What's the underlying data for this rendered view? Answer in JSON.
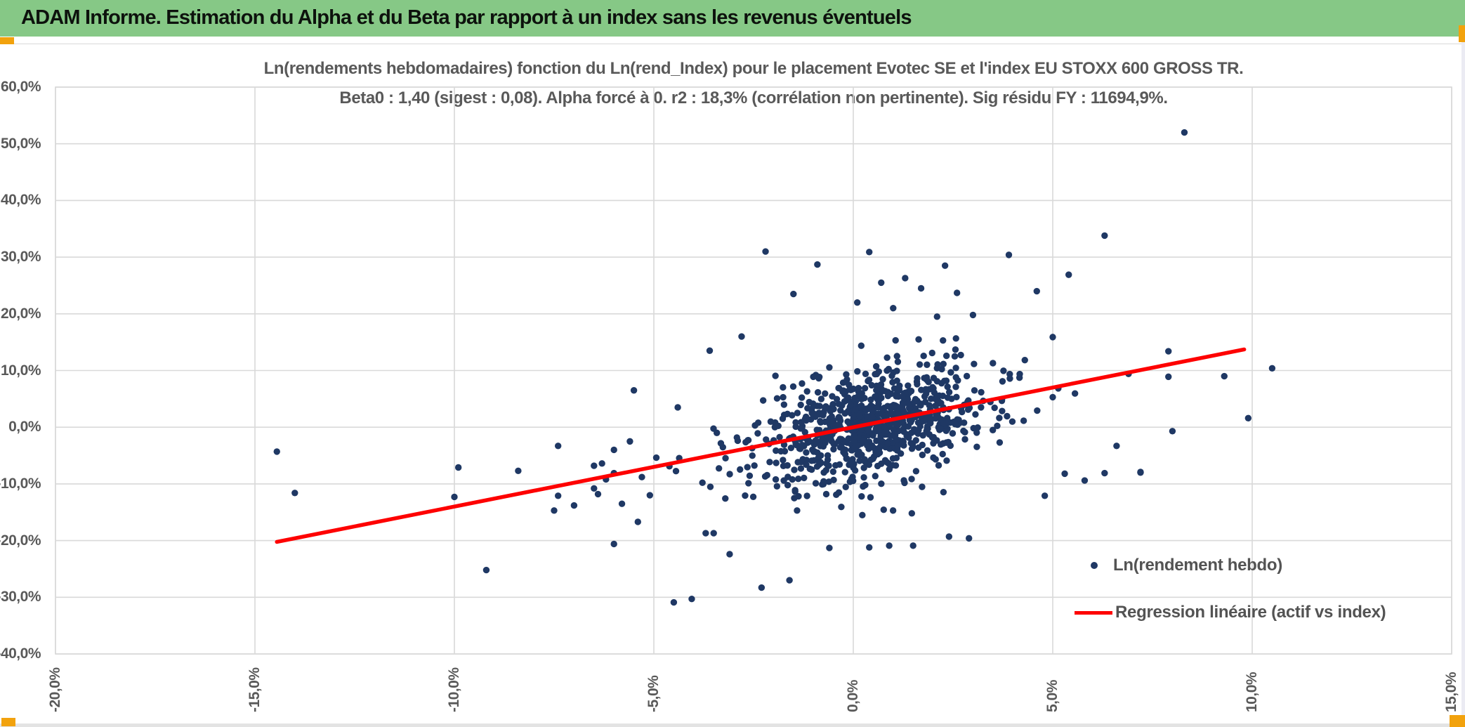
{
  "header": {
    "title": "ADAM Informe. Estimation du Alpha et du Beta par rapport à un index sans les revenus éventuels",
    "bg_color": "#86C886"
  },
  "accents": {
    "selection_orange": "#F2A20D",
    "gridline_gray": "#D9D9D9",
    "axis_text_gray": "#595959"
  },
  "chart_data": {
    "type": "scatter",
    "title_line1": "Ln(rendements hebdomadaires) fonction du Ln(rend_Index) pour le placement Evotec SE et l'index EU STOXX 600 GROSS TR.",
    "title_line2": "Beta0 : 1,40 (sigest : 0,08). Alpha forcé à 0. r2 : 18,3% (corrélation non pertinente). Sig résidu FY : 11694,9%.",
    "stats": {
      "beta0": "1,40",
      "sigest": "0,08",
      "alpha": "forcé à 0",
      "r2": "18,3%",
      "sig_residu_FY": "11694,9%"
    },
    "xlim": [
      -20,
      15
    ],
    "ylim": [
      -40,
      60
    ],
    "grid": true,
    "x_axis": {
      "ticks": [
        {
          "v": -20,
          "label": "-20,0%"
        },
        {
          "v": -15,
          "label": "-15,0%"
        },
        {
          "v": -10,
          "label": "-10,0%"
        },
        {
          "v": -5,
          "label": "-5,0%"
        },
        {
          "v": 0,
          "label": "0,0%"
        },
        {
          "v": 5,
          "label": "5,0%"
        },
        {
          "v": 10,
          "label": "10,0%"
        },
        {
          "v": 15,
          "label": "15,0%"
        }
      ]
    },
    "y_axis": {
      "ticks": [
        {
          "v": 60,
          "label": "60,0%"
        },
        {
          "v": 50,
          "label": "50,0%"
        },
        {
          "v": 40,
          "label": "40,0%"
        },
        {
          "v": 30,
          "label": "30,0%"
        },
        {
          "v": 20,
          "label": "20,0%"
        },
        {
          "v": 10,
          "label": "10,0%"
        },
        {
          "v": 0,
          "label": "0,0%"
        },
        {
          "v": -10,
          "label": "-10,0%"
        },
        {
          "v": -20,
          "label": "-20,0%"
        },
        {
          "v": -30,
          "label": "-30,0%"
        },
        {
          "v": -40,
          "label": "-40,0%"
        }
      ]
    },
    "legend": {
      "position": "inside-right",
      "items": [
        {
          "label": "Ln(rendement hebdo)",
          "marker": "point",
          "color": "#1F3864"
        },
        {
          "label": "Regression linéaire (actif vs index)",
          "marker": "line",
          "color": "#FE0000"
        }
      ]
    },
    "series_color": "#1F3864",
    "regression": {
      "slope": 1.4,
      "intercept": 0,
      "x_start": -14.45,
      "x_end": 9.8,
      "color": "#FE0000"
    },
    "explicit_points": [
      [
        -14.45,
        -4.3
      ],
      [
        -14.0,
        -11.6
      ],
      [
        -9.9,
        -7.1
      ],
      [
        -10.0,
        -12.3
      ],
      [
        -9.2,
        -25.2
      ],
      [
        -8.4,
        -7.7
      ],
      [
        -7.4,
        -3.3
      ],
      [
        -7.4,
        -12.1
      ],
      [
        -7.5,
        -14.7
      ],
      [
        -7.0,
        -13.8
      ],
      [
        -6.5,
        -6.8
      ],
      [
        -6.3,
        -6.4
      ],
      [
        -6.5,
        -10.8
      ],
      [
        -6.4,
        -11.8
      ],
      [
        -6.2,
        -9.2
      ],
      [
        -6.0,
        -4.0
      ],
      [
        -6.0,
        -8.1
      ],
      [
        -6.0,
        -20.6
      ],
      [
        -5.4,
        -16.7
      ],
      [
        -5.5,
        6.5
      ],
      [
        -5.6,
        -2.5
      ],
      [
        -5.8,
        -13.5
      ],
      [
        -5.3,
        -8.8
      ],
      [
        -5.1,
        -12.0
      ],
      [
        -4.5,
        -30.9
      ],
      [
        -4.05,
        -30.3
      ],
      [
        -2.3,
        -28.3
      ],
      [
        -1.6,
        -27.0
      ],
      [
        -3.1,
        -22.4
      ],
      [
        -3.7,
        -18.7
      ],
      [
        -3.5,
        -18.7
      ],
      [
        0.4,
        -21.2
      ],
      [
        0.9,
        -20.9
      ],
      [
        1.5,
        -20.9
      ],
      [
        -0.6,
        -21.3
      ],
      [
        2.4,
        -19.3
      ],
      [
        2.9,
        -19.6
      ],
      [
        4.8,
        -12.1
      ],
      [
        5.3,
        -8.2
      ],
      [
        5.8,
        -9.4
      ],
      [
        6.3,
        -8.1
      ],
      [
        7.2,
        -8.0
      ],
      [
        8.3,
        52.0
      ],
      [
        6.3,
        33.8
      ],
      [
        5.4,
        26.9
      ],
      [
        4.6,
        24.0
      ],
      [
        3.9,
        30.4
      ],
      [
        3.0,
        19.8
      ],
      [
        3.5,
        11.3
      ],
      [
        5.0,
        15.9
      ],
      [
        5.0,
        5.3
      ],
      [
        2.3,
        28.5
      ],
      [
        0.4,
        30.9
      ],
      [
        -0.9,
        28.7
      ],
      [
        -2.2,
        31.0
      ],
      [
        1.3,
        26.3
      ],
      [
        0.7,
        25.5
      ],
      [
        1.7,
        24.5
      ],
      [
        2.6,
        23.7
      ],
      [
        -1.5,
        23.5
      ],
      [
        0.1,
        22.0
      ],
      [
        1.0,
        21.0
      ],
      [
        2.1,
        19.5
      ],
      [
        -2.8,
        16.0
      ],
      [
        -3.6,
        13.5
      ],
      [
        -4.4,
        3.5
      ],
      [
        10.5,
        10.4
      ],
      [
        9.9,
        1.6
      ],
      [
        9.3,
        9.0
      ],
      [
        8.0,
        -0.7
      ],
      [
        7.9,
        8.9
      ],
      [
        7.9,
        13.4
      ],
      [
        6.9,
        9.4
      ],
      [
        6.6,
        -3.3
      ],
      [
        7.2,
        -7.9
      ]
    ],
    "cluster_generator": {
      "comment": "dense weekly-return cloud approximated from pixels",
      "count": 860,
      "seed": 7,
      "x_mean": 0.45,
      "x_sd": 1.35,
      "x_mix2": 0.12,
      "x_mean2": 0.2,
      "x_sd2": 2.6,
      "resid_sd": 4.3,
      "resid_mix2": 0.15,
      "resid_sd2": 8.0,
      "clip_x": [
        -5.3,
        5.8
      ],
      "clip_y": [
        -15.8,
        16.5
      ]
    }
  }
}
